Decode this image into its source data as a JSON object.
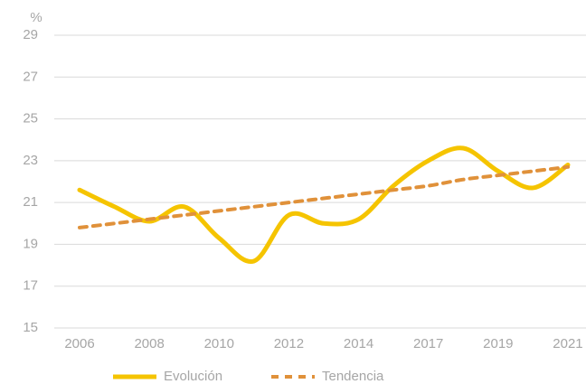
{
  "chart_data": {
    "type": "line",
    "y_label": "%",
    "categories": [
      "2006",
      null,
      "2008",
      null,
      "2010",
      null,
      "2012",
      null,
      "2014",
      null,
      "2017",
      null,
      "2019",
      null,
      "2021"
    ],
    "series": [
      {
        "name": "Evolución",
        "color": "#f5c400",
        "style": "solid",
        "values": [
          21.6,
          20.8,
          20.1,
          20.8,
          19.3,
          18.2,
          20.4,
          20.0,
          20.2,
          21.8,
          23.0,
          23.6,
          22.5,
          21.7,
          22.8
        ]
      },
      {
        "name": "Tendencia",
        "color": "#e0913a",
        "style": "dashed",
        "values": [
          19.8,
          20.0,
          20.2,
          20.4,
          20.6,
          20.8,
          21.0,
          21.2,
          21.4,
          21.6,
          21.8,
          22.1,
          22.3,
          22.5,
          22.7
        ]
      }
    ],
    "ylim": [
      15,
      29
    ],
    "yticks": [
      15,
      17,
      19,
      21,
      23,
      25,
      27,
      29
    ],
    "grid": true
  }
}
